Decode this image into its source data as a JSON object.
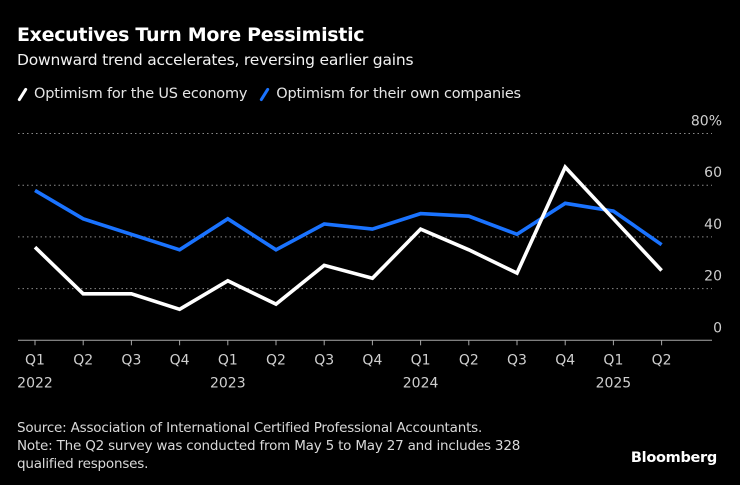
{
  "header": {
    "title": "Executives Turn More Pessimistic",
    "subtitle": "Downward trend accelerates, reversing earlier gains"
  },
  "legend": [
    {
      "label": "Optimism for the US economy",
      "color": "#ffffff"
    },
    {
      "label": "Optimism for their own companies",
      "color": "#1a73ff"
    }
  ],
  "footer": {
    "source": "Source: Association of International Certified Professional Accountants.",
    "note_line1": "Note: The Q2 survey was conducted from May 5 to May 27 and includes 328",
    "note_line2": "qualified responses.",
    "brand": "Bloomberg"
  },
  "chart_data": {
    "type": "line",
    "title": "Executives Turn More Pessimistic",
    "subtitle": "Downward trend accelerates, reversing earlier gains",
    "xlabel": "",
    "ylabel": "",
    "x": [
      "Q1 2022",
      "Q2 2022",
      "Q3 2022",
      "Q4 2022",
      "Q1 2023",
      "Q2 2023",
      "Q3 2023",
      "Q4 2023",
      "Q1 2024",
      "Q2 2024",
      "Q3 2024",
      "Q4 2024",
      "Q1 2025",
      "Q2 2025"
    ],
    "x_tick_labels": [
      "Q1",
      "Q2",
      "Q3",
      "Q4",
      "Q1",
      "Q2",
      "Q3",
      "Q4",
      "Q1",
      "Q2",
      "Q3",
      "Q4",
      "Q1",
      "Q2"
    ],
    "x_year_labels": [
      {
        "index": 0,
        "label": "2022"
      },
      {
        "index": 4,
        "label": "2023"
      },
      {
        "index": 8,
        "label": "2024"
      },
      {
        "index": 12,
        "label": "2025"
      }
    ],
    "ylim": [
      0,
      80
    ],
    "y_ticks": [
      0,
      20,
      40,
      60,
      80
    ],
    "y_tick_labels": [
      "0",
      "20",
      "40",
      "60",
      "80%"
    ],
    "grid": true,
    "legend_position": "top-left",
    "series": [
      {
        "name": "Optimism for the US economy",
        "color": "#ffffff",
        "values": [
          36,
          18,
          18,
          12,
          23,
          14,
          29,
          24,
          43,
          35,
          26,
          67,
          47,
          27
        ]
      },
      {
        "name": "Optimism for their own companies",
        "color": "#1a73ff",
        "values": [
          58,
          47,
          41,
          35,
          47,
          35,
          45,
          43,
          49,
          48,
          41,
          53,
          50,
          37
        ]
      }
    ]
  }
}
